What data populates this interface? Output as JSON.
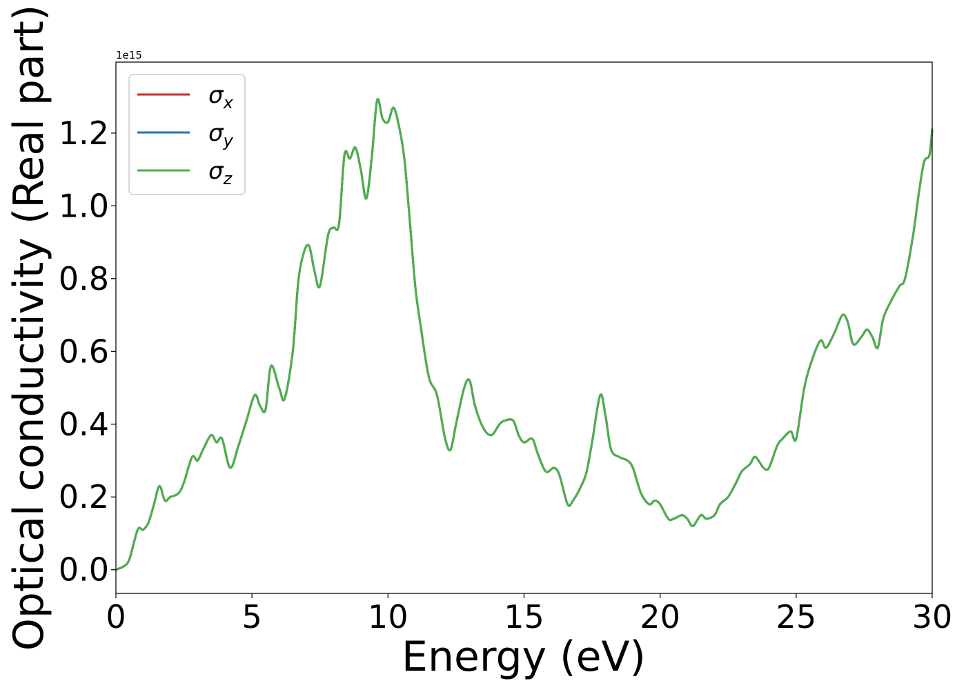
{
  "chart_data": {
    "type": "line",
    "title": "",
    "xlabel": "Energy (eV)",
    "ylabel": "Optical conductivity (Real part)",
    "y_offset_text": "1e15",
    "y_scale_factor": 1000000000000000.0,
    "xlim": [
      0,
      30
    ],
    "ylim": [
      -0.065,
      1.395
    ],
    "x_ticks": [
      0,
      5,
      10,
      15,
      20,
      25,
      30
    ],
    "x_tick_labels": [
      "0",
      "5",
      "10",
      "15",
      "20",
      "25",
      "30"
    ],
    "y_ticks": [
      0.0,
      0.2,
      0.4,
      0.6,
      0.8,
      1.0,
      1.2
    ],
    "y_tick_labels": [
      "0.0",
      "0.2",
      "0.4",
      "0.6",
      "0.8",
      "1.0",
      "1.2"
    ],
    "grid": false,
    "legend_position": "top-left",
    "series": [
      {
        "name": "σx",
        "symbol": "σ",
        "subscript": "x",
        "color": "#d62728"
      },
      {
        "name": "σy",
        "symbol": "σ",
        "subscript": "y",
        "color": "#1f77b4"
      },
      {
        "name": "σz",
        "symbol": "σ",
        "subscript": "z",
        "color": "#4daf4a"
      }
    ],
    "x": [
      0,
      0.3,
      0.5,
      0.8,
      1.0,
      1.2,
      1.4,
      1.6,
      1.8,
      2.0,
      2.3,
      2.5,
      2.8,
      3.0,
      3.2,
      3.5,
      3.7,
      3.9,
      4.2,
      4.5,
      4.8,
      5.1,
      5.3,
      5.5,
      5.7,
      6.0,
      6.2,
      6.5,
      6.7,
      6.9,
      7.1,
      7.3,
      7.5,
      7.8,
      8.0,
      8.2,
      8.4,
      8.6,
      8.8,
      9.0,
      9.2,
      9.4,
      9.6,
      9.8,
      10.0,
      10.2,
      10.4,
      10.6,
      10.8,
      11.0,
      11.2,
      11.5,
      11.8,
      12.1,
      12.3,
      12.5,
      12.8,
      13.0,
      13.2,
      13.5,
      13.8,
      14.1,
      14.3,
      14.6,
      14.8,
      15.0,
      15.3,
      15.5,
      15.8,
      16.1,
      16.3,
      16.6,
      16.8,
      17.1,
      17.3,
      17.5,
      17.8,
      18.0,
      18.2,
      18.5,
      18.8,
      19.0,
      19.3,
      19.6,
      19.8,
      20.0,
      20.3,
      20.5,
      20.8,
      21.0,
      21.2,
      21.5,
      21.7,
      22.0,
      22.2,
      22.5,
      22.8,
      23.0,
      23.3,
      23.5,
      23.8,
      24.0,
      24.3,
      24.5,
      24.8,
      25.0,
      25.3,
      25.6,
      25.9,
      26.1,
      26.4,
      26.7,
      26.9,
      27.1,
      27.4,
      27.6,
      27.8,
      28.0,
      28.2,
      28.5,
      28.8,
      29.0,
      29.3,
      29.5,
      29.7,
      29.9,
      30.0
    ],
    "y": [
      0.0,
      0.01,
      0.03,
      0.11,
      0.11,
      0.13,
      0.18,
      0.23,
      0.19,
      0.2,
      0.21,
      0.24,
      0.31,
      0.3,
      0.33,
      0.37,
      0.35,
      0.36,
      0.28,
      0.34,
      0.41,
      0.48,
      0.45,
      0.44,
      0.56,
      0.5,
      0.47,
      0.6,
      0.79,
      0.87,
      0.89,
      0.82,
      0.78,
      0.92,
      0.94,
      0.95,
      1.14,
      1.13,
      1.16,
      1.1,
      1.02,
      1.13,
      1.29,
      1.24,
      1.23,
      1.27,
      1.22,
      1.13,
      0.96,
      0.78,
      0.67,
      0.53,
      0.48,
      0.36,
      0.33,
      0.4,
      0.5,
      0.52,
      0.45,
      0.39,
      0.37,
      0.4,
      0.41,
      0.41,
      0.37,
      0.35,
      0.36,
      0.32,
      0.27,
      0.28,
      0.26,
      0.18,
      0.19,
      0.23,
      0.27,
      0.35,
      0.48,
      0.42,
      0.33,
      0.31,
      0.3,
      0.28,
      0.21,
      0.18,
      0.19,
      0.18,
      0.14,
      0.14,
      0.15,
      0.14,
      0.12,
      0.15,
      0.14,
      0.15,
      0.18,
      0.2,
      0.24,
      0.27,
      0.29,
      0.31,
      0.28,
      0.28,
      0.34,
      0.36,
      0.38,
      0.36,
      0.5,
      0.58,
      0.63,
      0.61,
      0.65,
      0.7,
      0.68,
      0.62,
      0.64,
      0.66,
      0.64,
      0.61,
      0.69,
      0.74,
      0.78,
      0.8,
      0.92,
      1.03,
      1.12,
      1.14,
      1.21
    ]
  }
}
